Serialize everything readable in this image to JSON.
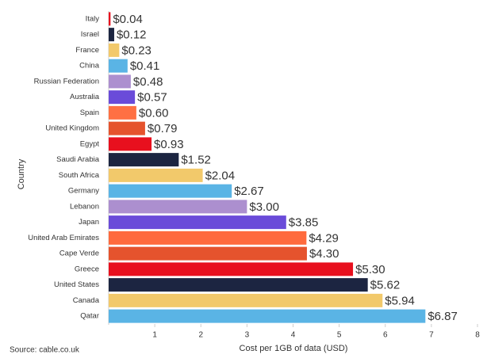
{
  "chart_data": {
    "type": "hbar",
    "xlabel": "Cost per 1GB of data (USD)",
    "ylabel": "Country",
    "source": "Source: cable.co.uk",
    "categories": [
      "Italy",
      "Israel",
      "France",
      "China",
      "Russian Federation",
      "Australia",
      "Spain",
      "United Kingdom",
      "Egypt",
      "Saudi Arabia",
      "South Africa",
      "Germany",
      "Lebanon",
      "Japan",
      "United Arab Emirates",
      "Cape Verde",
      "Greece",
      "United States",
      "Canada",
      "Qatar"
    ],
    "values": [
      0.04,
      0.12,
      0.23,
      0.41,
      0.48,
      0.57,
      0.6,
      0.79,
      0.93,
      1.52,
      2.04,
      2.67,
      3.0,
      3.85,
      4.29,
      4.3,
      5.3,
      5.62,
      5.94,
      6.87
    ],
    "value_labels": [
      "$0.04",
      "$0.12",
      "$0.23",
      "$0.41",
      "$0.48",
      "$0.57",
      "$0.60",
      "$0.79",
      "$0.93",
      "$1.52",
      "$2.04",
      "$2.67",
      "$3.00",
      "$3.85",
      "$4.29",
      "$4.30",
      "$5.30",
      "$5.62",
      "$5.94",
      "$6.87"
    ],
    "colors": [
      "#e8101e",
      "#1c2541",
      "#f2c96b",
      "#5ab4e5",
      "#ac8fcf",
      "#6a4bd9",
      "#ff7043",
      "#e5532d",
      "#e8101e",
      "#1c2541",
      "#f2c96b",
      "#5ab4e5",
      "#ac8fcf",
      "#6a4bd9",
      "#ff6a3d",
      "#e5532d",
      "#e8101e",
      "#1c2541",
      "#f2c96b",
      "#5ab4e5"
    ],
    "xlim": [
      0,
      8
    ],
    "xticks": [
      1,
      2,
      3,
      4,
      5,
      6,
      7,
      8
    ]
  }
}
